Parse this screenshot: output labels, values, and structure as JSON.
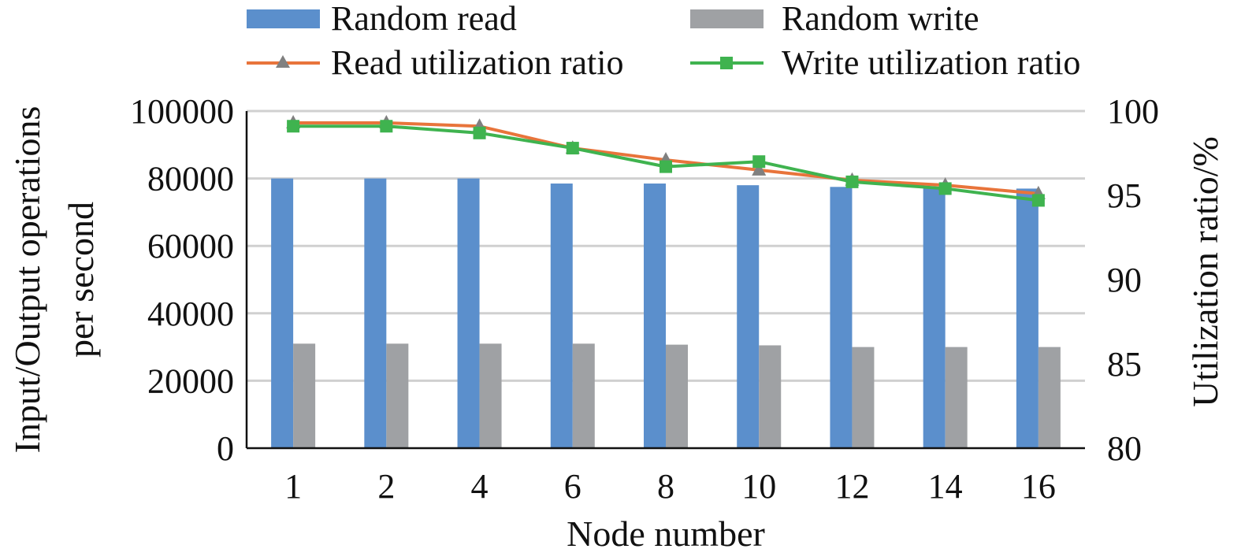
{
  "chart_data": {
    "type": "bar",
    "combo": "bar + line (dual y-axis)",
    "xlabel": "Node number",
    "categories": [
      "1",
      "2",
      "4",
      "6",
      "8",
      "10",
      "12",
      "14",
      "16"
    ],
    "y_left": {
      "label_lines": [
        "Input/Output operations",
        "per second"
      ],
      "lim": [
        0,
        100000
      ],
      "ticks": [
        0,
        20000,
        40000,
        60000,
        80000,
        100000
      ]
    },
    "y_right": {
      "label": "Utilization ratio/%",
      "lim": [
        80,
        100
      ],
      "ticks": [
        80,
        85,
        90,
        95,
        100
      ]
    },
    "grid": true,
    "legend_position": "top",
    "bar_series": [
      {
        "name": "Random read",
        "color": "#5b8fcc",
        "axis": "left",
        "values": [
          80000,
          80000,
          80000,
          78500,
          78500,
          78000,
          77500,
          77500,
          77000
        ]
      },
      {
        "name": "Random write",
        "color": "#9fa1a4",
        "axis": "left",
        "values": [
          31000,
          31000,
          31000,
          31000,
          30700,
          30500,
          30000,
          30000,
          30000
        ]
      }
    ],
    "line_series": [
      {
        "name": "Read utilization ratio",
        "color": "#e8743b",
        "marker": "triangle",
        "marker_color": "#808080",
        "axis": "right",
        "values": [
          99.3,
          99.3,
          99.1,
          97.8,
          97.1,
          96.5,
          95.9,
          95.6,
          95.1
        ]
      },
      {
        "name": "Write utilization ratio",
        "color": "#3fb34f",
        "marker": "square",
        "marker_color": "#3fb34f",
        "axis": "right",
        "values": [
          99.1,
          99.1,
          98.7,
          97.8,
          96.7,
          97.0,
          95.8,
          95.4,
          94.7
        ]
      }
    ]
  }
}
